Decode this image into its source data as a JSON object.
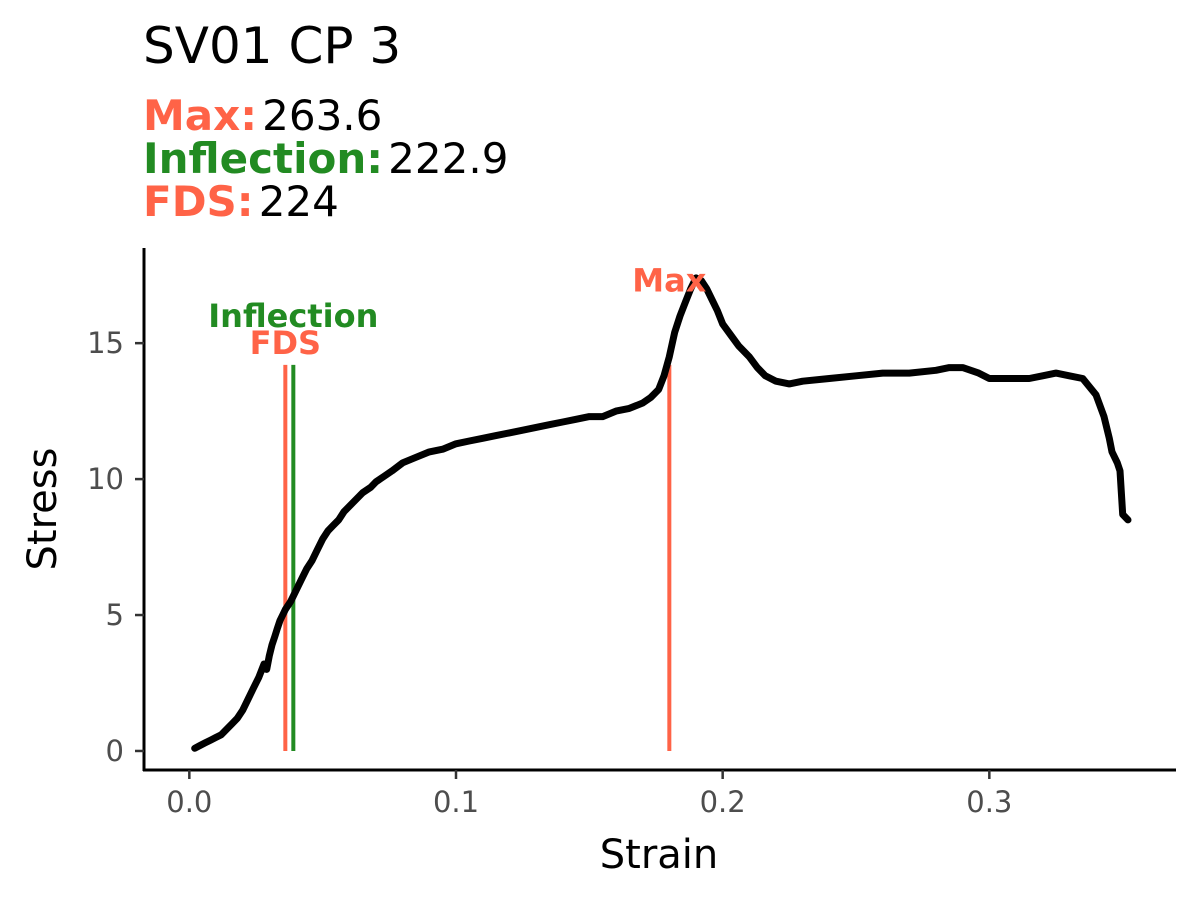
{
  "chart_data": {
    "type": "line",
    "title": "SV01 CP 3",
    "stats": [
      {
        "label": "Max:",
        "value": "263.6",
        "color": "#FF6347"
      },
      {
        "label": "Inflection:",
        "value": "222.9",
        "color": "#228B22"
      },
      {
        "label": "FDS:",
        "value": "224",
        "color": "#FF6347"
      }
    ],
    "xlabel": "Strain",
    "ylabel": "Stress",
    "xlim": [
      -0.017,
      0.37
    ],
    "ylim": [
      -0.7,
      18.5
    ],
    "xticks": [
      {
        "value": 0.0,
        "label": "0.0"
      },
      {
        "value": 0.1,
        "label": "0.1"
      },
      {
        "value": 0.2,
        "label": "0.2"
      },
      {
        "value": 0.3,
        "label": "0.3"
      }
    ],
    "yticks": [
      {
        "value": 0,
        "label": "0"
      },
      {
        "value": 5,
        "label": "5"
      },
      {
        "value": 10,
        "label": "10"
      },
      {
        "value": 15,
        "label": "15"
      }
    ],
    "grid": false,
    "markers": [
      {
        "name": "FDS",
        "x": 0.036,
        "y_top": 14.2,
        "color": "#FF6347"
      },
      {
        "name": "Inflection",
        "x": 0.039,
        "y_top": 14.2,
        "color": "#228B22"
      },
      {
        "name": "Max",
        "x": 0.18,
        "y_top": 14.2,
        "color": "#FF6347"
      }
    ],
    "marker_labels": [
      {
        "text": "Inflection",
        "x": 0.039,
        "y": 16.0,
        "color": "#228B22"
      },
      {
        "text": "FDS",
        "x": 0.036,
        "y": 15.0,
        "color": "#FF6347"
      },
      {
        "text": "Max",
        "x": 0.18,
        "y": 17.3,
        "color": "#FF6347"
      }
    ],
    "series": [
      {
        "color": "#000000",
        "x": [
          0.002,
          0.004,
          0.006,
          0.008,
          0.01,
          0.012,
          0.014,
          0.016,
          0.018,
          0.02,
          0.022,
          0.024,
          0.026,
          0.028,
          0.029,
          0.03,
          0.031,
          0.032,
          0.033,
          0.034,
          0.035,
          0.036,
          0.038,
          0.04,
          0.042,
          0.044,
          0.046,
          0.048,
          0.05,
          0.052,
          0.054,
          0.056,
          0.058,
          0.06,
          0.062,
          0.065,
          0.068,
          0.07,
          0.073,
          0.076,
          0.08,
          0.085,
          0.09,
          0.095,
          0.1,
          0.105,
          0.11,
          0.115,
          0.12,
          0.125,
          0.13,
          0.135,
          0.14,
          0.145,
          0.15,
          0.155,
          0.16,
          0.165,
          0.17,
          0.173,
          0.176,
          0.178,
          0.18,
          0.182,
          0.184,
          0.186,
          0.188,
          0.19,
          0.192,
          0.194,
          0.196,
          0.198,
          0.2,
          0.203,
          0.206,
          0.21,
          0.213,
          0.216,
          0.22,
          0.225,
          0.23,
          0.24,
          0.25,
          0.26,
          0.27,
          0.28,
          0.285,
          0.29,
          0.293,
          0.296,
          0.3,
          0.305,
          0.31,
          0.315,
          0.32,
          0.325,
          0.33,
          0.335,
          0.34,
          0.343,
          0.345,
          0.346,
          0.348,
          0.349,
          0.35,
          0.352
        ],
        "y": [
          0.1,
          0.2,
          0.3,
          0.4,
          0.5,
          0.6,
          0.8,
          1.0,
          1.2,
          1.5,
          1.9,
          2.3,
          2.7,
          3.2,
          3.0,
          3.5,
          3.9,
          4.2,
          4.5,
          4.8,
          5.0,
          5.2,
          5.5,
          5.9,
          6.3,
          6.7,
          7.0,
          7.4,
          7.8,
          8.1,
          8.3,
          8.5,
          8.8,
          9.0,
          9.2,
          9.5,
          9.7,
          9.9,
          10.1,
          10.3,
          10.6,
          10.8,
          11.0,
          11.1,
          11.3,
          11.4,
          11.5,
          11.6,
          11.7,
          11.8,
          11.9,
          12.0,
          12.1,
          12.2,
          12.3,
          12.3,
          12.5,
          12.6,
          12.8,
          13.0,
          13.3,
          13.8,
          14.5,
          15.4,
          16.0,
          16.5,
          17.0,
          17.4,
          17.3,
          17.0,
          16.6,
          16.2,
          15.7,
          15.3,
          14.9,
          14.5,
          14.1,
          13.8,
          13.6,
          13.5,
          13.6,
          13.7,
          13.8,
          13.9,
          13.9,
          14.0,
          14.1,
          14.1,
          14.0,
          13.9,
          13.7,
          13.7,
          13.7,
          13.7,
          13.8,
          13.9,
          13.8,
          13.7,
          13.1,
          12.3,
          11.5,
          11.0,
          10.6,
          10.3,
          8.7,
          8.5
        ]
      }
    ]
  }
}
